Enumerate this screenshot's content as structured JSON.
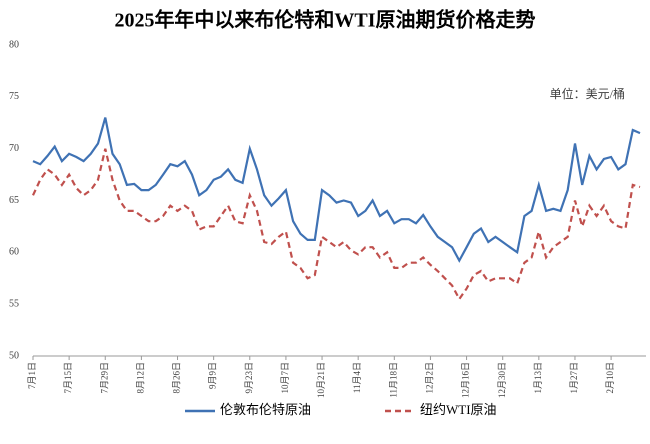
{
  "chart_data": {
    "type": "line",
    "title": "2025年年中以来布伦特和WTI原油期货价格走势",
    "annotation": "单位：美元/桶",
    "categories": [
      "7月1日",
      null,
      null,
      null,
      null,
      "7月15日",
      null,
      null,
      null,
      null,
      "7月29日",
      null,
      null,
      null,
      null,
      "8月12日",
      null,
      null,
      null,
      null,
      "8月26日",
      null,
      null,
      null,
      null,
      "9月9日",
      null,
      null,
      null,
      null,
      "9月23日",
      null,
      null,
      null,
      null,
      "10月7日",
      null,
      null,
      null,
      null,
      "10月21日",
      null,
      null,
      null,
      null,
      "11月4日",
      null,
      null,
      null,
      null,
      "11月18日",
      null,
      null,
      null,
      null,
      "12月2日",
      null,
      null,
      null,
      null,
      "12月16日",
      null,
      null,
      null,
      null,
      "12月30日",
      null,
      null,
      null,
      null,
      "1月13日",
      null,
      null,
      null,
      null,
      "1月27日",
      null,
      null,
      null,
      null,
      "2月10日",
      null,
      null,
      null,
      null
    ],
    "series": [
      {
        "name": "伦敦布伦特原油",
        "color": "#3f72b4",
        "dash": false,
        "values": [
          68.8,
          68.5,
          69.3,
          70.2,
          68.8,
          69.5,
          69.2,
          68.8,
          69.5,
          70.5,
          73.0,
          69.5,
          68.5,
          66.5,
          66.6,
          66.0,
          66.0,
          66.5,
          67.5,
          68.5,
          68.3,
          68.8,
          67.5,
          65.5,
          66.0,
          67.0,
          67.3,
          68.0,
          67.0,
          66.7,
          70.0,
          68.0,
          65.5,
          64.5,
          65.2,
          66.0,
          63.0,
          61.8,
          61.2,
          61.2,
          66.0,
          65.5,
          64.8,
          65.0,
          64.8,
          63.5,
          64.0,
          65.0,
          63.5,
          64.0,
          62.8,
          63.2,
          63.2,
          62.8,
          63.6,
          62.5,
          61.5,
          61.0,
          60.5,
          59.2,
          60.5,
          61.8,
          62.3,
          61.0,
          61.5,
          61.0,
          60.5,
          60.0,
          63.5,
          64.0,
          66.5,
          64.0,
          64.2,
          64.0,
          66.0,
          70.5,
          66.5,
          69.3,
          68.0,
          69.0,
          69.2,
          68.0,
          68.5,
          71.8,
          71.5
        ]
      },
      {
        "name": "纽约WTI原油",
        "color": "#c0504d",
        "dash": true,
        "values": [
          65.5,
          67.0,
          68.0,
          67.5,
          66.5,
          67.5,
          66.2,
          65.5,
          66.0,
          67.0,
          70.0,
          67.0,
          65.0,
          64.0,
          64.0,
          63.5,
          63.0,
          63.0,
          63.5,
          64.5,
          64.0,
          64.5,
          64.0,
          62.2,
          62.5,
          62.5,
          63.5,
          64.5,
          63.0,
          62.8,
          65.5,
          64.0,
          61.0,
          60.8,
          61.5,
          62.0,
          59.0,
          58.5,
          57.5,
          57.8,
          61.5,
          61.0,
          60.5,
          61.0,
          60.2,
          59.8,
          60.5,
          60.5,
          59.5,
          60.0,
          58.5,
          58.5,
          59.0,
          59.0,
          59.5,
          58.8,
          58.2,
          57.5,
          56.8,
          55.5,
          56.5,
          57.8,
          58.2,
          57.2,
          57.5,
          57.5,
          57.5,
          57.0,
          59.0,
          59.5,
          62.0,
          59.5,
          60.5,
          61.0,
          61.5,
          65.0,
          62.5,
          64.5,
          63.5,
          64.5,
          63.0,
          62.5,
          62.3,
          66.5,
          66.3
        ]
      }
    ],
    "ylim": [
      50,
      80
    ],
    "yticks": [
      50,
      55,
      60,
      65,
      70,
      75,
      80
    ],
    "grid": false,
    "legend": "bottom"
  }
}
